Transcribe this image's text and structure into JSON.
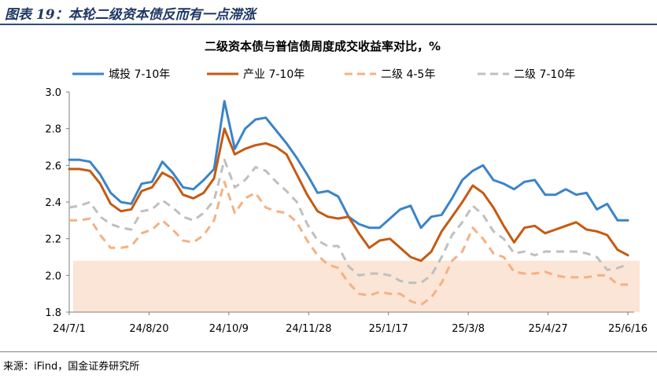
{
  "figure_title": "图表 19：本轮二级资本债反而有一点滞涨",
  "source": "来源：iFind，国金证券研究所",
  "chart_data": {
    "type": "line",
    "title": "二级资本债与普信债周度成交收益率对比，%",
    "xlabel": "",
    "ylabel": "",
    "ylim": [
      1.8,
      3.0
    ],
    "yticks": [
      "3.0",
      "2.8",
      "2.6",
      "2.4",
      "2.2",
      "2.0",
      "1.8"
    ],
    "xticks": [
      "24/7/1",
      "24/8/20",
      "24/10/9",
      "24/11/28",
      "25/1/17",
      "25/3/8",
      "25/4/27",
      "25/6/16"
    ],
    "grid": false,
    "legend_position": "top",
    "shaded_band": [
      1.8,
      2.08
    ],
    "series": [
      {
        "name": "城投 7-10年",
        "color": "#3a84c9",
        "style": "solid",
        "values": [
          2.63,
          2.63,
          2.62,
          2.55,
          2.45,
          2.4,
          2.39,
          2.5,
          2.51,
          2.62,
          2.56,
          2.48,
          2.47,
          2.52,
          2.58,
          2.95,
          2.69,
          2.8,
          2.85,
          2.86,
          2.79,
          2.72,
          2.64,
          2.55,
          2.45,
          2.46,
          2.43,
          2.32,
          2.28,
          2.26,
          2.26,
          2.31,
          2.36,
          2.38,
          2.26,
          2.32,
          2.33,
          2.42,
          2.52,
          2.57,
          2.6,
          2.52,
          2.5,
          2.47,
          2.51,
          2.52,
          2.44,
          2.44,
          2.47,
          2.44,
          2.45,
          2.36,
          2.39,
          2.3,
          2.3
        ]
      },
      {
        "name": "产业 7-10年",
        "color": "#c55a11",
        "style": "solid",
        "values": [
          2.58,
          2.58,
          2.57,
          2.5,
          2.39,
          2.35,
          2.36,
          2.46,
          2.48,
          2.56,
          2.53,
          2.44,
          2.42,
          2.45,
          2.53,
          2.8,
          2.66,
          2.69,
          2.71,
          2.72,
          2.7,
          2.66,
          2.55,
          2.44,
          2.35,
          2.32,
          2.31,
          2.32,
          2.23,
          2.15,
          2.19,
          2.2,
          2.15,
          2.1,
          2.08,
          2.13,
          2.24,
          2.32,
          2.4,
          2.49,
          2.45,
          2.37,
          2.27,
          2.18,
          2.26,
          2.27,
          2.23,
          2.25,
          2.27,
          2.29,
          2.25,
          2.24,
          2.22,
          2.14,
          2.11
        ]
      },
      {
        "name": "二级 4-5年",
        "color": "#f4b183",
        "style": "dashed",
        "values": [
          2.3,
          2.3,
          2.31,
          2.22,
          2.15,
          2.15,
          2.16,
          2.23,
          2.25,
          2.3,
          2.25,
          2.19,
          2.18,
          2.22,
          2.3,
          2.51,
          2.34,
          2.42,
          2.45,
          2.37,
          2.35,
          2.34,
          2.29,
          2.19,
          2.11,
          2.06,
          2.04,
          1.96,
          1.9,
          1.89,
          1.91,
          1.9,
          1.9,
          1.86,
          1.84,
          1.88,
          1.96,
          2.08,
          2.13,
          2.26,
          2.2,
          2.12,
          2.1,
          2.02,
          2.01,
          2.01,
          2.02,
          2.0,
          1.99,
          1.99,
          1.99,
          2.0,
          2.0,
          1.95,
          1.95
        ]
      },
      {
        "name": "二级 7-10年",
        "color": "#bfbfbf",
        "style": "dashed",
        "values": [
          2.37,
          2.38,
          2.4,
          2.32,
          2.28,
          2.26,
          2.25,
          2.35,
          2.36,
          2.41,
          2.37,
          2.32,
          2.3,
          2.34,
          2.41,
          2.63,
          2.48,
          2.52,
          2.59,
          2.57,
          2.51,
          2.46,
          2.4,
          2.28,
          2.19,
          2.16,
          2.16,
          2.05,
          2.0,
          2.01,
          2.01,
          2.0,
          1.97,
          1.96,
          1.96,
          2.0,
          2.1,
          2.22,
          2.29,
          2.38,
          2.33,
          2.24,
          2.2,
          2.12,
          2.13,
          2.11,
          2.13,
          2.13,
          2.13,
          2.13,
          2.12,
          2.1,
          2.03,
          2.04,
          2.06
        ]
      }
    ]
  }
}
